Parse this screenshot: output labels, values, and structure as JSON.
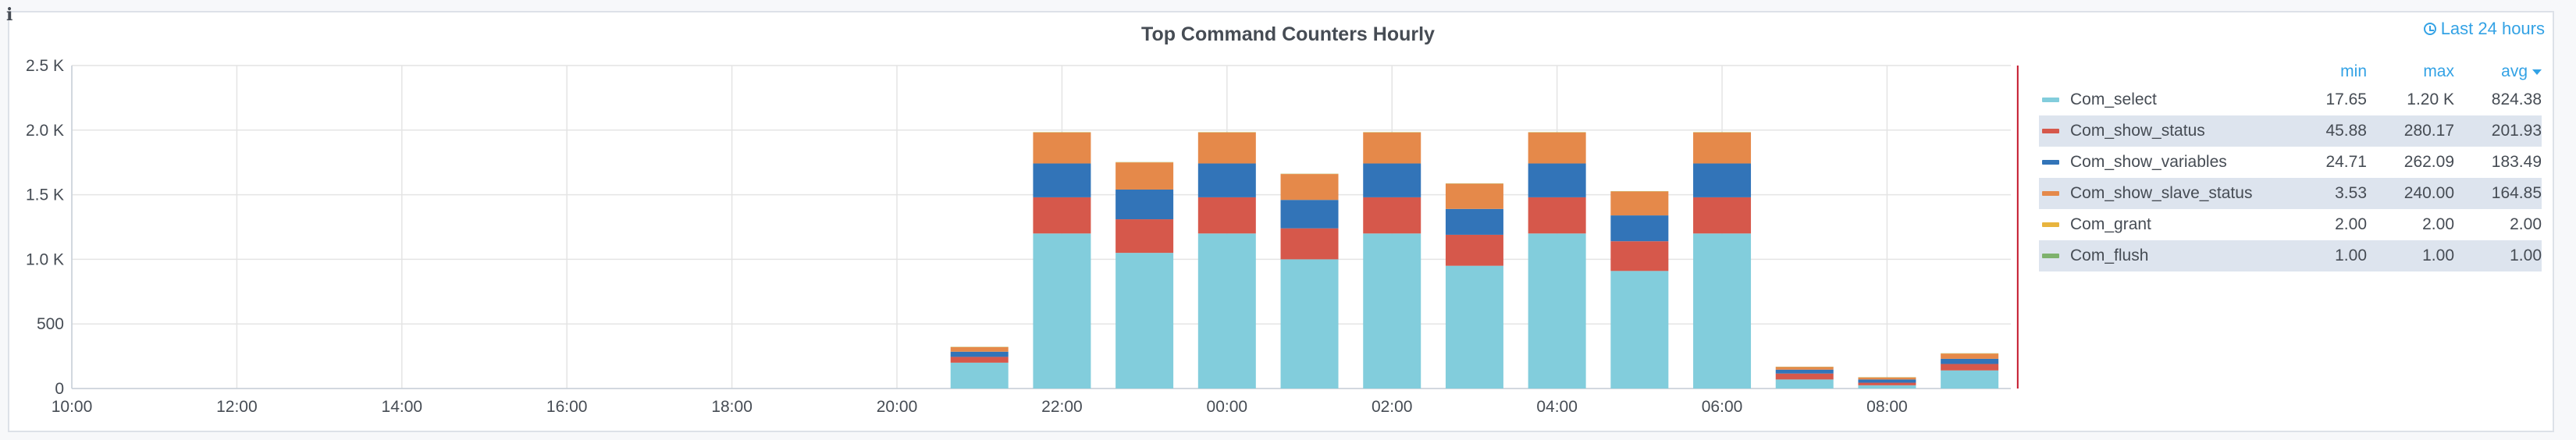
{
  "panel": {
    "info_icon": "i",
    "time_range": "Last 24 hours"
  },
  "legend_headers": {
    "min": "min",
    "max": "max",
    "avg": "avg"
  },
  "legend_rows": [
    {
      "name": "Com_select",
      "min": "17.65",
      "max": "1.20 K",
      "avg": "824.38"
    },
    {
      "name": "Com_show_status",
      "min": "45.88",
      "max": "280.17",
      "avg": "201.93"
    },
    {
      "name": "Com_show_variables",
      "min": "24.71",
      "max": "262.09",
      "avg": "183.49"
    },
    {
      "name": "Com_show_slave_status",
      "min": "3.53",
      "max": "240.00",
      "avg": "164.85"
    },
    {
      "name": "Com_grant",
      "min": "2.00",
      "max": "2.00",
      "avg": "2.00"
    },
    {
      "name": "Com_flush",
      "min": "1.00",
      "max": "1.00",
      "avg": "1.00"
    }
  ],
  "chart_data": {
    "type": "bar",
    "stacked": true,
    "title": "Top Command Counters Hourly",
    "x_range": [
      "10:00",
      "09:30"
    ],
    "x_ticks": [
      "10:00",
      "12:00",
      "14:00",
      "16:00",
      "18:00",
      "20:00",
      "22:00",
      "00:00",
      "02:00",
      "04:00",
      "06:00",
      "08:00"
    ],
    "y_ticks": [
      "0",
      "500",
      "1.0 K",
      "1.5 K",
      "2.0 K",
      "2.5 K"
    ],
    "ylim": [
      0,
      2500
    ],
    "grid": true,
    "legend_position": "right",
    "categories": [
      "21:00",
      "22:00",
      "23:00",
      "00:00",
      "01:00",
      "02:00",
      "03:00",
      "04:00",
      "05:00",
      "06:00",
      "07:00",
      "08:00",
      "09:00"
    ],
    "series": [
      {
        "name": "Com_select",
        "color": "#82cddc",
        "values": [
          200,
          1200,
          1050,
          1200,
          1000,
          1200,
          950,
          1200,
          910,
          1200,
          70,
          25,
          140
        ]
      },
      {
        "name": "Com_show_status",
        "color": "#d6584b",
        "values": [
          45,
          280,
          260,
          280,
          240,
          280,
          240,
          280,
          230,
          280,
          46,
          20,
          50
        ]
      },
      {
        "name": "Com_show_variables",
        "color": "#3274b8",
        "values": [
          40,
          262,
          230,
          262,
          220,
          262,
          200,
          262,
          200,
          262,
          30,
          25,
          40
        ]
      },
      {
        "name": "Com_show_slave_status",
        "color": "#e5894a",
        "values": [
          35,
          240,
          210,
          240,
          200,
          240,
          195,
          240,
          185,
          240,
          20,
          15,
          40
        ]
      },
      {
        "name": "Com_grant",
        "color": "#e8b43e",
        "values": [
          2,
          2,
          2,
          2,
          2,
          2,
          2,
          2,
          2,
          2,
          2,
          2,
          2
        ]
      },
      {
        "name": "Com_flush",
        "color": "#7eb26d",
        "values": [
          1,
          1,
          1,
          1,
          1,
          1,
          1,
          1,
          1,
          1,
          1,
          1,
          1
        ]
      }
    ],
    "current_time_marker": "09:35",
    "marker_color": "#c4162a"
  }
}
